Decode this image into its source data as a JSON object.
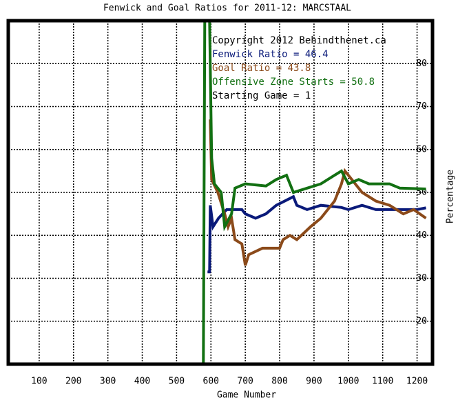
{
  "chart_data": {
    "type": "line",
    "title": "Fenwick and Goal Ratios for 2011-12: MARCSTAAL",
    "x_label": "Game Number",
    "y_label": "Percentage",
    "annotations": [
      "Copyright 2012 Behindthenet.ca",
      "Fenwick Ratio = 46.4",
      "Goal Ratio = 43.8",
      "Offensive Zone Starts = 50.8",
      "Starting Game = 1"
    ],
    "annotation_colors": [
      "#000000",
      "#0a1a7a",
      "#8b4a1a",
      "#127012",
      "#000000"
    ],
    "xlim": [
      10,
      1245
    ],
    "ylim": [
      10,
      90
    ],
    "xticks": [
      100,
      200,
      300,
      400,
      500,
      600,
      700,
      800,
      900,
      1000,
      1100,
      1200
    ],
    "yticks": [
      20,
      30,
      40,
      50,
      60,
      70,
      80
    ],
    "grid": true,
    "series": [
      {
        "name": "Fenwick Ratio",
        "color": "#0a1a7a",
        "x": [
          590,
          596,
          598,
          606,
          622,
          646,
          690,
          700,
          730,
          760,
          790,
          840,
          850,
          880,
          920,
          980,
          1000,
          1040,
          1080,
          1120,
          1160,
          1200,
          1226
        ],
        "values": [
          31.5,
          31.5,
          47,
          42,
          44,
          46,
          46,
          45,
          44,
          45,
          47,
          49,
          47,
          46,
          47,
          46.5,
          46,
          47,
          46,
          46,
          46,
          46,
          46.4
        ]
      },
      {
        "name": "Goal Ratio",
        "color": "#8b4a1a",
        "x": [
          598,
          602,
          620,
          640,
          650,
          660,
          670,
          690,
          700,
          710,
          750,
          800,
          810,
          830,
          850,
          890,
          920,
          960,
          980,
          990,
          1010,
          1040,
          1080,
          1120,
          1160,
          1190,
          1226
        ],
        "values": [
          67,
          53,
          50,
          45,
          42,
          44,
          39,
          38,
          33,
          35.5,
          37,
          37,
          39,
          40,
          39,
          42,
          44,
          48,
          52,
          55,
          53,
          50,
          48,
          47,
          45,
          46,
          44
        ]
      },
      {
        "name": "Offensive Zone Starts",
        "color": "#127012",
        "x": [
          576,
          578,
          582,
          596,
          602,
          610,
          630,
          640,
          660,
          670,
          700,
          760,
          790,
          820,
          840,
          880,
          920,
          960,
          980,
          1000,
          1030,
          1060,
          1120,
          1150,
          1226
        ],
        "values": [
          10,
          10,
          90,
          90,
          58,
          52,
          50,
          42,
          45,
          51,
          52,
          51.5,
          53,
          54,
          50,
          51,
          52,
          54,
          55,
          52,
          53,
          52,
          52,
          51,
          50.8
        ]
      }
    ]
  }
}
